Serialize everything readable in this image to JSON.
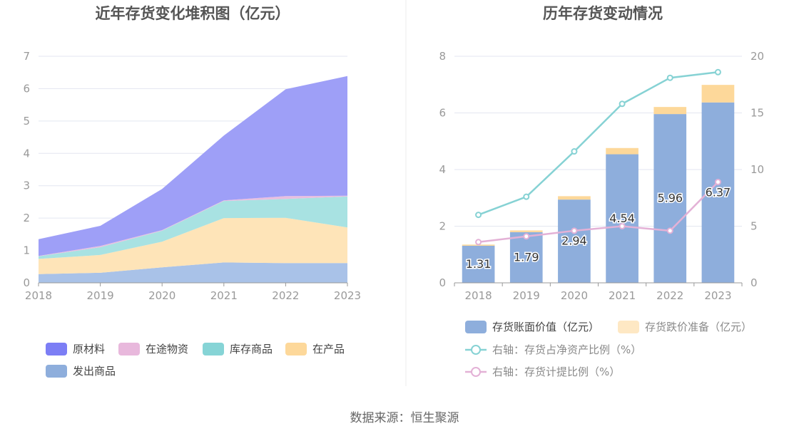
{
  "source_text": "数据来源：恒生聚源",
  "colors": {
    "raw": "#9e9ff7",
    "transit": "#e8bfe0",
    "stock": "#a8e2e2",
    "wip": "#fee4b8",
    "shipped": "#a9c2e8",
    "legend_raw": "#7c7ef5",
    "legend_transit": "#e8b8dc",
    "legend_stock": "#86d4d6",
    "legend_wip": "#fdd89a",
    "legend_shipped": "#8eaedc",
    "bar_book": "#8eaedc",
    "bar_reserve": "#fdd89a",
    "line_ratio": "#86d2d4",
    "line_provision": "#e3b1d6"
  },
  "chart_data": [
    {
      "type": "area",
      "stacked": true,
      "title": "近年存货变化堆积图（亿元）",
      "x": [
        "2018",
        "2019",
        "2020",
        "2021",
        "2022",
        "2023"
      ],
      "ylim": [
        0,
        7
      ],
      "yticks": [
        "0",
        "1",
        "2",
        "3",
        "4",
        "5",
        "6",
        "7"
      ],
      "grid": true,
      "legend_position": "bottom",
      "series": [
        {
          "name": "发出商品",
          "values": [
            0.27,
            0.31,
            0.48,
            0.63,
            0.61,
            0.61
          ]
        },
        {
          "name": "在产品",
          "values": [
            0.47,
            0.55,
            0.79,
            1.37,
            1.4,
            1.1
          ]
        },
        {
          "name": "库存商品",
          "values": [
            0.08,
            0.24,
            0.34,
            0.53,
            0.58,
            0.96
          ]
        },
        {
          "name": "在途物资",
          "values": [
            0.01,
            0.04,
            0.02,
            0.02,
            0.09,
            0.02
          ]
        },
        {
          "name": "原材料",
          "values": [
            0.52,
            0.62,
            1.27,
            2.0,
            3.3,
            3.7
          ]
        }
      ]
    },
    {
      "type": "bar",
      "stacked": true,
      "title": "历年存货变动情况",
      "categories": [
        "2018",
        "2019",
        "2020",
        "2021",
        "2022",
        "2023"
      ],
      "ylim": [
        0,
        8
      ],
      "yticks": [
        "0",
        "2",
        "4",
        "6",
        "8"
      ],
      "y2lim": [
        0,
        20
      ],
      "y2ticks": [
        "0",
        "5",
        "10",
        "15",
        "20"
      ],
      "grid": true,
      "legend_position": "bottom",
      "series": [
        {
          "name": "存货账面价值（亿元）",
          "values": [
            1.31,
            1.79,
            2.94,
            4.54,
            5.96,
            6.37
          ],
          "labels": [
            "1.31",
            "1.79",
            "2.94",
            "4.54",
            "5.96",
            "6.37"
          ]
        },
        {
          "name": "存货跌价准备（亿元）",
          "values": [
            0.04,
            0.06,
            0.12,
            0.22,
            0.25,
            0.62
          ]
        }
      ],
      "line_series": [
        {
          "name": "右轴：存货占净资产比例（%）",
          "axis": "right",
          "values": [
            6.0,
            7.6,
            11.6,
            15.8,
            18.1,
            18.6
          ]
        },
        {
          "name": "右轴：存货计提比例（%）",
          "axis": "right",
          "values": [
            3.6,
            4.1,
            4.6,
            5.0,
            4.6,
            8.9
          ]
        }
      ]
    }
  ]
}
